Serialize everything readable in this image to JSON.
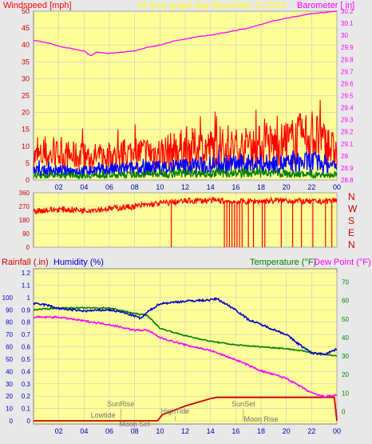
{
  "header": {
    "left_title": "Windspeed [mph]",
    "center_title": "24 hour graph day   November 12 2013",
    "right_title": "Barometer [ in]"
  },
  "colors": {
    "background": "#e8e8e8",
    "plot_bg": "#ffff99",
    "grid": "#c8c8c8",
    "wind_speed": "#ff0000",
    "wind_avg": "#0000ff",
    "wind_low": "#008000",
    "barometer": "#ff00ff",
    "temperature": "#008000",
    "dew_point": "#ff00ff",
    "humidity": "#0000cc",
    "rain": "#cc0000",
    "direction": "#ff0000"
  },
  "chart_data": [
    {
      "type": "line",
      "name": "wind-barometer",
      "xlabel": "",
      "ylabel": "Windspeed [mph]",
      "y2label": "Barometer [ in]",
      "x_ticks": [
        "02",
        "04",
        "06",
        "08",
        "10",
        "12",
        "14",
        "16",
        "18",
        "20",
        "22",
        "00"
      ],
      "ylim": [
        0,
        50
      ],
      "y_ticks": [
        0,
        5,
        10,
        15,
        20,
        25,
        30,
        35,
        40,
        45,
        50
      ],
      "y2lim": [
        28.8,
        30.2
      ],
      "y2_ticks": [
        "28.8",
        "28.9",
        "29",
        "29.1",
        "29.2",
        "29.3",
        "29.4",
        "29.5",
        "29.6",
        "29.7",
        "29.8",
        "29.9",
        "30",
        "30.1",
        "30.2"
      ],
      "barometer_points": [
        [
          0,
          29.96
        ],
        [
          1,
          29.94
        ],
        [
          2,
          29.91
        ],
        [
          3,
          29.89
        ],
        [
          4,
          29.87
        ],
        [
          4.5,
          29.83
        ],
        [
          5,
          29.86
        ],
        [
          6,
          29.85
        ],
        [
          7,
          29.86
        ],
        [
          8,
          29.87
        ],
        [
          9,
          29.9
        ],
        [
          10,
          29.92
        ],
        [
          11,
          29.95
        ],
        [
          12,
          29.97
        ],
        [
          13,
          29.99
        ],
        [
          14,
          30.0
        ],
        [
          15,
          30.02
        ],
        [
          16,
          30.04
        ],
        [
          17,
          30.06
        ],
        [
          18,
          30.09
        ],
        [
          19,
          30.12
        ],
        [
          20,
          30.14
        ],
        [
          21,
          30.16
        ],
        [
          22,
          30.18
        ],
        [
          23,
          30.19
        ],
        [
          24,
          30.2
        ]
      ],
      "wind_gust_envelope": [
        [
          0,
          10
        ],
        [
          2,
          11
        ],
        [
          4,
          10
        ],
        [
          6,
          10
        ],
        [
          8,
          12
        ],
        [
          10,
          12
        ],
        [
          12,
          14
        ],
        [
          14,
          14
        ],
        [
          16,
          14
        ],
        [
          18,
          15
        ],
        [
          20,
          16
        ],
        [
          21,
          18
        ],
        [
          22,
          20
        ],
        [
          23,
          16
        ],
        [
          24,
          12
        ]
      ],
      "wind_avg_envelope": [
        [
          0,
          4
        ],
        [
          4,
          4
        ],
        [
          8,
          5
        ],
        [
          12,
          6
        ],
        [
          16,
          7
        ],
        [
          20,
          7
        ],
        [
          22,
          8
        ],
        [
          24,
          6
        ]
      ],
      "wind_low_envelope": [
        [
          0,
          2
        ],
        [
          6,
          2
        ],
        [
          12,
          3
        ],
        [
          18,
          3
        ],
        [
          24,
          2
        ]
      ]
    },
    {
      "type": "scatter",
      "name": "wind-direction",
      "x_ticks": [
        "02",
        "04",
        "06",
        "08",
        "10",
        "12",
        "14",
        "16",
        "18",
        "20",
        "22",
        "00"
      ],
      "y_ticks": [
        0,
        90,
        180,
        270,
        360
      ],
      "y2_labels": [
        "N",
        "W",
        "S",
        "E",
        "N"
      ],
      "ylim": [
        0,
        360
      ],
      "direction_points": [
        [
          0,
          240
        ],
        [
          2,
          250
        ],
        [
          4,
          245
        ],
        [
          6,
          255
        ],
        [
          8,
          270
        ],
        [
          10,
          290
        ],
        [
          12,
          305
        ],
        [
          14,
          310
        ],
        [
          16,
          300
        ],
        [
          18,
          305
        ],
        [
          20,
          310
        ],
        [
          22,
          300
        ],
        [
          24,
          310
        ]
      ],
      "drops_to_zero": [
        10.9,
        15.1,
        15.3,
        15.5,
        15.7,
        15.9,
        16.1,
        16.3,
        16.5,
        17.0,
        17.4,
        18.1,
        18.3,
        19.6,
        20.5,
        21.2,
        22.1,
        23.1,
        23.6
      ]
    },
    {
      "type": "line",
      "name": "temperature-humidity-rain",
      "xlabel": "",
      "labels": {
        "rainfall": "Rainfall (.in)",
        "humidity": "Humidity (%)",
        "temperature": "Temperature (°F)",
        "dew_point": "Dew Point (°F)"
      },
      "x_ticks": [
        "02",
        "04",
        "06",
        "08",
        "10",
        "12",
        "14",
        "16",
        "18",
        "20",
        "22",
        "00"
      ],
      "rain_ticks": [
        "0",
        "0.1",
        "0.2",
        "0.3",
        "0.4",
        "0.5",
        "0.6",
        "0.7",
        "0.8",
        "0.9",
        "1",
        "1.1",
        "1.2"
      ],
      "humidity_ticks": [
        "0",
        "10",
        "20",
        "30",
        "40",
        "50",
        "60",
        "70",
        "80",
        "90",
        "100"
      ],
      "temp_ticks": [
        "0",
        "10",
        "20",
        "30",
        "40",
        "50",
        "60",
        "70"
      ],
      "rain_lim": [
        0,
        1.2
      ],
      "temp_lim": [
        -5,
        75
      ],
      "temperature": [
        [
          0,
          55
        ],
        [
          2,
          56
        ],
        [
          4,
          56
        ],
        [
          6,
          56
        ],
        [
          8,
          53
        ],
        [
          9,
          52
        ],
        [
          10,
          45
        ],
        [
          12,
          41
        ],
        [
          14,
          38
        ],
        [
          16,
          36
        ],
        [
          18,
          35
        ],
        [
          20,
          34
        ],
        [
          22,
          32
        ],
        [
          24,
          30
        ]
      ],
      "dew_point": [
        [
          0,
          51
        ],
        [
          2,
          51
        ],
        [
          4,
          49
        ],
        [
          6,
          47
        ],
        [
          8,
          44
        ],
        [
          9,
          44
        ],
        [
          10,
          40
        ],
        [
          12,
          36
        ],
        [
          14,
          33
        ],
        [
          16,
          28
        ],
        [
          18,
          22
        ],
        [
          20,
          18
        ],
        [
          21,
          14
        ],
        [
          22,
          10
        ],
        [
          23,
          8
        ],
        [
          24,
          9
        ]
      ],
      "humidity": [
        [
          0,
          95
        ],
        [
          1,
          94
        ],
        [
          2,
          91
        ],
        [
          4,
          89
        ],
        [
          6,
          90
        ],
        [
          7,
          88
        ],
        [
          8,
          85
        ],
        [
          8.5,
          83
        ],
        [
          9,
          88
        ],
        [
          10,
          95
        ],
        [
          12,
          97
        ],
        [
          14,
          98
        ],
        [
          14.5,
          99
        ],
        [
          15,
          96
        ],
        [
          16,
          90
        ],
        [
          17,
          82
        ],
        [
          18,
          78
        ],
        [
          20,
          70
        ],
        [
          21,
          62
        ],
        [
          22,
          55
        ],
        [
          23,
          54
        ],
        [
          24,
          58
        ]
      ],
      "rain": [
        [
          0,
          0
        ],
        [
          9.8,
          0
        ],
        [
          10.2,
          0.05
        ],
        [
          11,
          0.08
        ],
        [
          12,
          0.12
        ],
        [
          13,
          0.15
        ],
        [
          14,
          0.18
        ],
        [
          14.5,
          0.19
        ],
        [
          20,
          0.19
        ],
        [
          23.8,
          0.19
        ],
        [
          24,
          0
        ]
      ],
      "annotations": [
        {
          "label": "SunRise",
          "hour": 6.9
        },
        {
          "label": "Lowtide",
          "hour": 5.5
        },
        {
          "label": "Moon Set",
          "hour": 8.0
        },
        {
          "label": "HighTide",
          "hour": 11.2
        },
        {
          "label": "SunSet",
          "hour": 16.6
        },
        {
          "label": "Moon Rise",
          "hour": 18.0
        }
      ]
    }
  ]
}
